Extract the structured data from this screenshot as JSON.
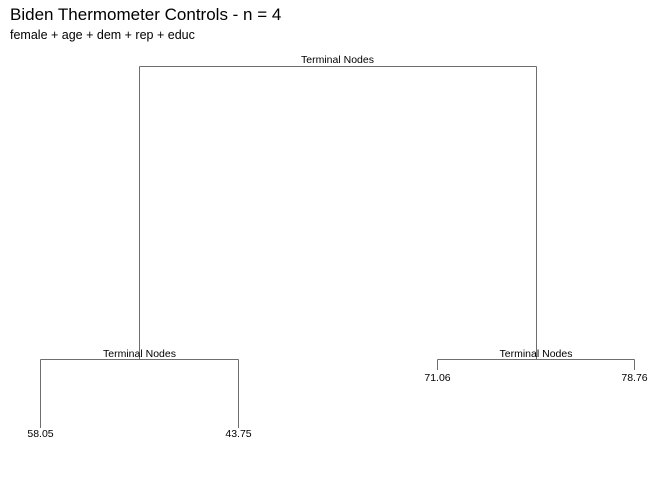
{
  "header": {
    "title": "Biden Thermometer Controls - n = 4",
    "subtitle": "female + age + dem + rep + educ"
  },
  "tree": {
    "root": {
      "label": "Terminal Nodes"
    },
    "left": {
      "label": "Terminal Nodes",
      "leaves": [
        "58.05",
        "43.75"
      ]
    },
    "right": {
      "label": "Terminal Nodes",
      "leaves": [
        "71.06",
        "78.76"
      ]
    }
  },
  "colors": {
    "line": "#6e6e6e",
    "text": "#000000"
  }
}
